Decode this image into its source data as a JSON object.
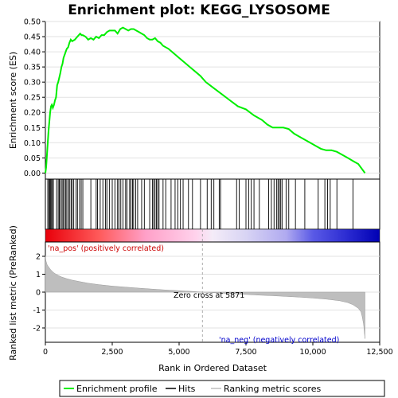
{
  "title": "Enrichment plot: KEGG_LYSOSOME",
  "colors": {
    "enrichment": "#00ee00",
    "hits": "#000000",
    "metric": "#bebebe",
    "pos_text": "#cc0000",
    "neg_text": "#0000cc"
  },
  "legend": {
    "enrichment_label": "Enrichment profile",
    "hits_label": "Hits",
    "metric_label": "Ranking metric scores"
  },
  "chart_data": [
    {
      "type": "line",
      "title": "Enrichment plot: KEGG_LYSOSOME",
      "ylabel": "Enrichment score (ES)",
      "xlim": [
        0,
        12000
      ],
      "ylim": [
        -0.02,
        0.5
      ],
      "yticks": [
        "0.00",
        "0.05",
        "0.10",
        "0.15",
        "0.20",
        "0.25",
        "0.30",
        "0.35",
        "0.40",
        "0.45",
        "0.50"
      ],
      "grid": true,
      "series": [
        {
          "name": "Enrichment profile",
          "x": [
            0,
            30,
            60,
            90,
            120,
            150,
            180,
            210,
            240,
            280,
            320,
            360,
            400,
            440,
            480,
            520,
            560,
            600,
            640,
            680,
            720,
            760,
            800,
            850,
            900,
            950,
            1000,
            1100,
            1200,
            1300,
            1350,
            1400,
            1500,
            1600,
            1700,
            1800,
            1900,
            2000,
            2100,
            2200,
            2300,
            2400,
            2500,
            2600,
            2700,
            2800,
            2900,
            3000,
            3100,
            3200,
            3300,
            3400,
            3500,
            3600,
            3700,
            3800,
            3900,
            4000,
            4100,
            4200,
            4300,
            4400,
            4600,
            4800,
            5000,
            5200,
            5400,
            5600,
            5800,
            6000,
            6300,
            6600,
            6900,
            7200,
            7500,
            7800,
            8100,
            8300,
            8500,
            8700,
            8900,
            9100,
            9300,
            9500,
            9700,
            9900,
            10100,
            10300,
            10500,
            10700,
            10900,
            11100,
            11300,
            11500,
            11700,
            11950
          ],
          "values": [
            0.0,
            0.02,
            0.06,
            0.1,
            0.14,
            0.17,
            0.2,
            0.22,
            0.225,
            0.215,
            0.225,
            0.24,
            0.25,
            0.29,
            0.3,
            0.315,
            0.33,
            0.35,
            0.36,
            0.38,
            0.39,
            0.4,
            0.41,
            0.415,
            0.43,
            0.44,
            0.435,
            0.44,
            0.45,
            0.46,
            0.455,
            0.455,
            0.45,
            0.44,
            0.445,
            0.44,
            0.45,
            0.445,
            0.455,
            0.455,
            0.465,
            0.47,
            0.47,
            0.47,
            0.46,
            0.475,
            0.48,
            0.475,
            0.47,
            0.475,
            0.475,
            0.47,
            0.465,
            0.46,
            0.455,
            0.445,
            0.44,
            0.44,
            0.445,
            0.435,
            0.43,
            0.42,
            0.41,
            0.395,
            0.38,
            0.365,
            0.35,
            0.335,
            0.32,
            0.3,
            0.28,
            0.26,
            0.24,
            0.22,
            0.21,
            0.19,
            0.175,
            0.16,
            0.15,
            0.15,
            0.15,
            0.145,
            0.13,
            0.12,
            0.11,
            0.1,
            0.09,
            0.08,
            0.075,
            0.075,
            0.07,
            0.06,
            0.05,
            0.04,
            0.03,
            0.0
          ]
        }
      ]
    },
    {
      "type": "scatter",
      "title": "",
      "series": [
        {
          "name": "Hits",
          "x": [
            90,
            130,
            160,
            190,
            230,
            260,
            300,
            420,
            480,
            520,
            560,
            620,
            660,
            700,
            760,
            800,
            860,
            900,
            960,
            1000,
            1060,
            1150,
            1200,
            1280,
            1340,
            1400,
            1700,
            1900,
            1950,
            2050,
            2150,
            2250,
            2300,
            2400,
            2500,
            2600,
            2700,
            2750,
            2820,
            2900,
            3000,
            3050,
            3150,
            3200,
            3260,
            3300,
            3380,
            3450,
            3600,
            3700,
            3900,
            4000,
            4050,
            4100,
            4150,
            4200,
            4250,
            4400,
            4500,
            4700,
            4850,
            4950,
            5050,
            5150,
            5350,
            5500,
            5800,
            6050,
            6200,
            6300,
            6500,
            6550,
            7150,
            7250,
            7500,
            7600,
            7700,
            7800,
            8000,
            8350,
            8450,
            8550,
            8650,
            8700,
            8750,
            8800,
            8850,
            9000,
            9100,
            9350,
            9700,
            10200,
            10450,
            10550,
            10650,
            10900,
            11500
          ]
        }
      ]
    },
    {
      "type": "area",
      "title": "",
      "xlabel": "Rank in Ordered Dataset",
      "ylabel": "Ranked list metric (PreRanked)",
      "xlim": [
        0,
        12500
      ],
      "ylim": [
        -2.8,
        2.8
      ],
      "xticks": [
        "0",
        "2,500",
        "5,000",
        "7,500",
        "10,000",
        "12,500"
      ],
      "yticks": [
        "-2",
        "-1",
        "0",
        "1",
        "2"
      ],
      "annotations": [
        "'na_pos' (positively correlated)",
        "Zero cross at 5871",
        "'na_neg' (negatively correlated)"
      ],
      "zero_cross": 5871,
      "series": [
        {
          "name": "Ranking metric scores",
          "x": [
            0,
            20,
            60,
            100,
            150,
            200,
            300,
            400,
            500,
            600,
            800,
            1000,
            1300,
            1600,
            2000,
            2500,
            3000,
            3500,
            4000,
            4500,
            5000,
            5500,
            5871,
            6500,
            7000,
            7500,
            8000,
            8500,
            9000,
            9500,
            10000,
            10500,
            11000,
            11300,
            11500,
            11700,
            11800,
            11850,
            11900,
            11950
          ],
          "values": [
            2.0,
            1.75,
            1.55,
            1.45,
            1.35,
            1.25,
            1.1,
            1.0,
            0.92,
            0.85,
            0.75,
            0.67,
            0.58,
            0.5,
            0.42,
            0.34,
            0.28,
            0.22,
            0.17,
            0.12,
            0.08,
            0.04,
            0.0,
            -0.05,
            -0.09,
            -0.13,
            -0.17,
            -0.2,
            -0.24,
            -0.28,
            -0.33,
            -0.39,
            -0.48,
            -0.58,
            -0.7,
            -0.9,
            -1.1,
            -1.4,
            -1.8,
            -2.6
          ]
        }
      ]
    }
  ]
}
